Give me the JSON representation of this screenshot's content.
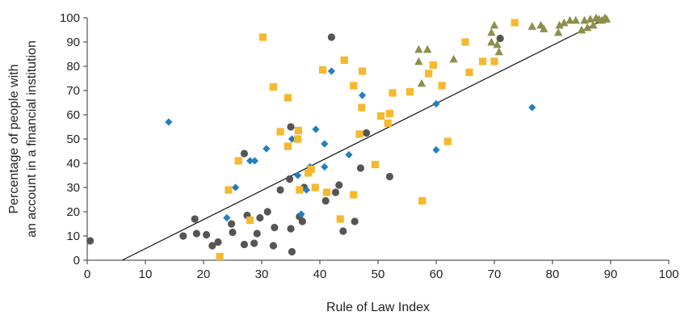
{
  "chart_data": {
    "type": "scatter",
    "xlabel": "Rule of Law Index",
    "ylabel_lines": [
      "Percentage of people with",
      "an account in a financial institution"
    ],
    "xlim": [
      0,
      100
    ],
    "ylim": [
      0,
      100
    ],
    "xticks": [
      0,
      10,
      20,
      30,
      40,
      50,
      60,
      70,
      80,
      90,
      100
    ],
    "yticks": [
      0,
      10,
      20,
      30,
      40,
      50,
      60,
      70,
      80,
      90,
      100
    ],
    "grid": false,
    "trendline": {
      "x": [
        6,
        89.5
      ],
      "y": [
        0,
        100
      ],
      "color": "#111111"
    },
    "series": [
      {
        "marker": "circle",
        "color": "#555555",
        "points": [
          [
            0.5,
            8
          ],
          [
            16.5,
            10
          ],
          [
            18.5,
            17
          ],
          [
            18.8,
            11
          ],
          [
            20.5,
            10.5
          ],
          [
            21.5,
            6
          ],
          [
            22.5,
            7.5
          ],
          [
            24.8,
            15
          ],
          [
            25,
            11.5
          ],
          [
            27,
            44
          ],
          [
            27,
            6.5
          ],
          [
            27.5,
            18.5
          ],
          [
            28.7,
            7
          ],
          [
            29.2,
            11
          ],
          [
            29.7,
            17.5
          ],
          [
            31,
            20
          ],
          [
            32,
            6
          ],
          [
            32.2,
            13.5
          ],
          [
            33.2,
            29
          ],
          [
            34.8,
            33.5
          ],
          [
            35,
            13
          ],
          [
            35.2,
            3.5
          ],
          [
            35,
            55
          ],
          [
            36.5,
            18
          ],
          [
            37,
            16
          ],
          [
            37.3,
            30
          ],
          [
            41,
            24.5
          ],
          [
            42,
            92
          ],
          [
            42.7,
            28
          ],
          [
            43.3,
            31
          ],
          [
            44,
            12
          ],
          [
            46,
            16
          ],
          [
            47,
            38
          ],
          [
            48,
            52.5
          ],
          [
            52,
            34.5
          ],
          [
            71,
            91.5
          ]
        ]
      },
      {
        "marker": "diamond",
        "color": "#1f7fc0",
        "points": [
          [
            14,
            57
          ],
          [
            24,
            17.5
          ],
          [
            25.5,
            30
          ],
          [
            28,
            41
          ],
          [
            28.8,
            41
          ],
          [
            30.8,
            46
          ],
          [
            35.2,
            50
          ],
          [
            36.2,
            35
          ],
          [
            36.8,
            19
          ],
          [
            37.7,
            29
          ],
          [
            38.3,
            38.5
          ],
          [
            39.3,
            54
          ],
          [
            40.8,
            48
          ],
          [
            40.8,
            38.5
          ],
          [
            42,
            78
          ],
          [
            45,
            43.5
          ],
          [
            47.3,
            68
          ],
          [
            60,
            64.5
          ],
          [
            60,
            45.5
          ],
          [
            76.5,
            63
          ]
        ]
      },
      {
        "marker": "square",
        "color": "#f5b82e",
        "points": [
          [
            22.8,
            1.5
          ],
          [
            24.3,
            29
          ],
          [
            26,
            41
          ],
          [
            28,
            16.5
          ],
          [
            30.2,
            92
          ],
          [
            32,
            71.5
          ],
          [
            33.2,
            53
          ],
          [
            34.5,
            67
          ],
          [
            34.5,
            47
          ],
          [
            36.2,
            50
          ],
          [
            36.3,
            53.5
          ],
          [
            36.5,
            29
          ],
          [
            38,
            36
          ],
          [
            38.5,
            37.5
          ],
          [
            39.2,
            30
          ],
          [
            40.5,
            78.5
          ],
          [
            41.2,
            28
          ],
          [
            43.5,
            17
          ],
          [
            44.2,
            82.5
          ],
          [
            45.8,
            72
          ],
          [
            45.8,
            27
          ],
          [
            46.8,
            52
          ],
          [
            47.2,
            63
          ],
          [
            47.3,
            78
          ],
          [
            49.5,
            39.5
          ],
          [
            50.5,
            59.5
          ],
          [
            51.7,
            56.5
          ],
          [
            52,
            60.5
          ],
          [
            52.5,
            69
          ],
          [
            55.5,
            69.5
          ],
          [
            57.6,
            24.5
          ],
          [
            58.7,
            77
          ],
          [
            59.5,
            80.5
          ],
          [
            61,
            72
          ],
          [
            62,
            49
          ],
          [
            65,
            90
          ],
          [
            65.7,
            77.5
          ],
          [
            68,
            82
          ],
          [
            70,
            82
          ],
          [
            73.5,
            98
          ]
        ]
      },
      {
        "marker": "triangle",
        "color": "#8d8f4b",
        "points": [
          [
            57,
            87
          ],
          [
            57,
            82
          ],
          [
            57.5,
            73
          ],
          [
            58.5,
            87
          ],
          [
            63,
            83
          ],
          [
            69.5,
            94
          ],
          [
            69.5,
            90
          ],
          [
            70,
            97
          ],
          [
            70.5,
            89
          ],
          [
            70.8,
            86
          ],
          [
            76.5,
            96.5
          ],
          [
            78,
            97
          ],
          [
            78.5,
            95.5
          ],
          [
            81,
            94
          ],
          [
            81.2,
            97
          ],
          [
            82,
            98
          ],
          [
            83,
            99
          ],
          [
            84,
            99
          ],
          [
            85,
            95
          ],
          [
            85.5,
            99
          ],
          [
            86,
            96
          ],
          [
            86.5,
            99.5
          ],
          [
            87,
            97
          ],
          [
            87.5,
            100
          ],
          [
            88,
            99.5
          ],
          [
            88.5,
            99
          ],
          [
            89,
            100
          ],
          [
            89.3,
            99.5
          ]
        ]
      }
    ]
  }
}
